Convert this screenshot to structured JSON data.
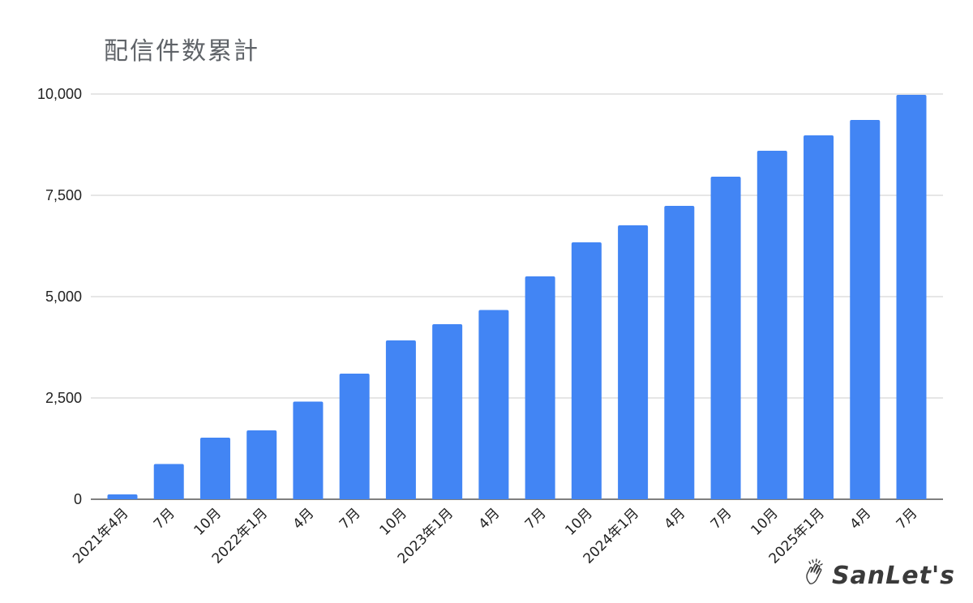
{
  "chart_data": {
    "type": "bar",
    "title": "配信件数累計",
    "xlabel": "",
    "ylabel": "",
    "ylim": [
      0,
      10000
    ],
    "y_ticks": [
      0,
      2500,
      5000,
      7500,
      10000
    ],
    "y_tick_labels": [
      "0",
      "2,500",
      "5,000",
      "7,500",
      "10,000"
    ],
    "grid": true,
    "bar_color": "#4285f4",
    "categories": [
      "2021年4月",
      "7月",
      "10月",
      "2022年1月",
      "4月",
      "7月",
      "10月",
      "2023年1月",
      "4月",
      "7月",
      "10月",
      "2024年1月",
      "4月",
      "7月",
      "10月",
      "2025年1月",
      "4月",
      "7月"
    ],
    "values": [
      120,
      870,
      1520,
      1700,
      2410,
      3100,
      3920,
      4320,
      4670,
      5500,
      6340,
      6760,
      7240,
      7960,
      8600,
      8980,
      9360,
      9980
    ]
  },
  "brand": {
    "name": "SanLet's",
    "icon": "clapping-hands-icon"
  }
}
